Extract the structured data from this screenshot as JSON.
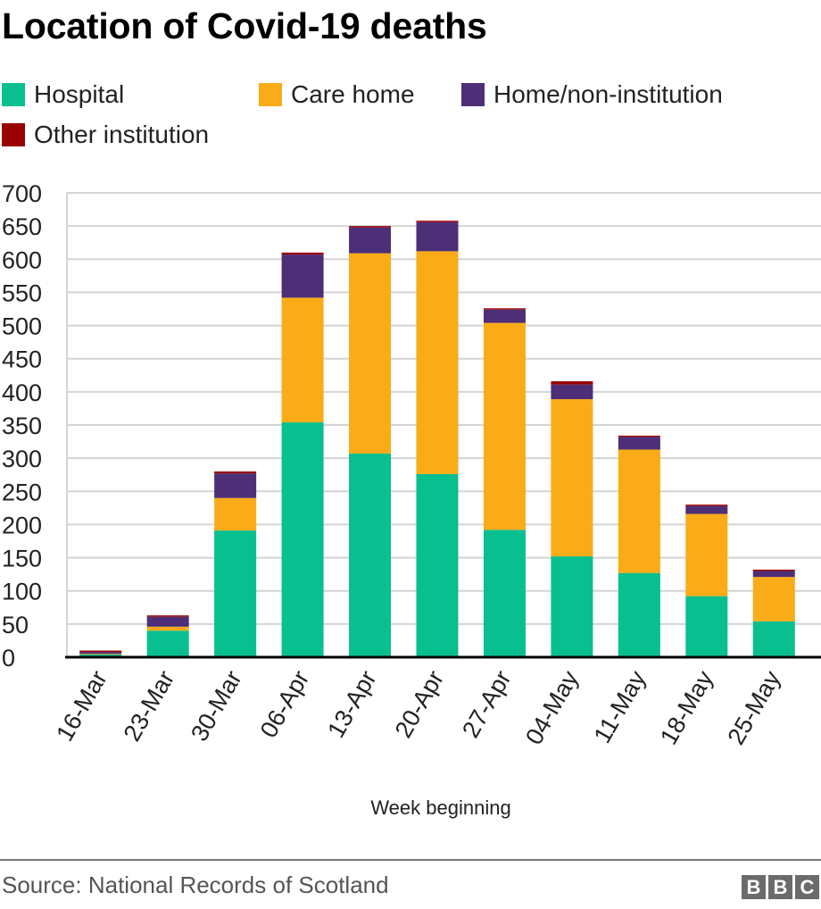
{
  "title": "Location of Covid-19 deaths",
  "source": "Source: National Records of Scotland",
  "logo": [
    "B",
    "B",
    "C"
  ],
  "chart_data": {
    "type": "bar",
    "stacked": true,
    "title": "Location of Covid-19 deaths",
    "xlabel": "Week beginning",
    "ylabel": "",
    "ylim": [
      0,
      700
    ],
    "yticks": [
      0,
      50,
      100,
      150,
      200,
      250,
      300,
      350,
      400,
      450,
      500,
      550,
      600,
      650,
      700
    ],
    "grid": true,
    "legend_position": "top",
    "categories": [
      "16-Mar",
      "23-Mar",
      "30-Mar",
      "06-Apr",
      "13-Apr",
      "20-Apr",
      "27-Apr",
      "04-May",
      "11-May",
      "18-May",
      "25-May"
    ],
    "series": [
      {
        "name": "Hospital",
        "color": "#08bf8f",
        "values": [
          4,
          40,
          191,
          354,
          307,
          276,
          192,
          152,
          127,
          92,
          54
        ]
      },
      {
        "name": "Care home",
        "color": "#faab18",
        "values": [
          1,
          6,
          49,
          188,
          302,
          336,
          312,
          237,
          186,
          124,
          67
        ]
      },
      {
        "name": "Home/non-institution",
        "color": "#4d2f78",
        "values": [
          3,
          15,
          37,
          65,
          39,
          44,
          20,
          22,
          19,
          12,
          9
        ]
      },
      {
        "name": "Other institution",
        "color": "#990000",
        "values": [
          2,
          2,
          3,
          3,
          2,
          2,
          2,
          5,
          2,
          2,
          2
        ]
      }
    ]
  }
}
